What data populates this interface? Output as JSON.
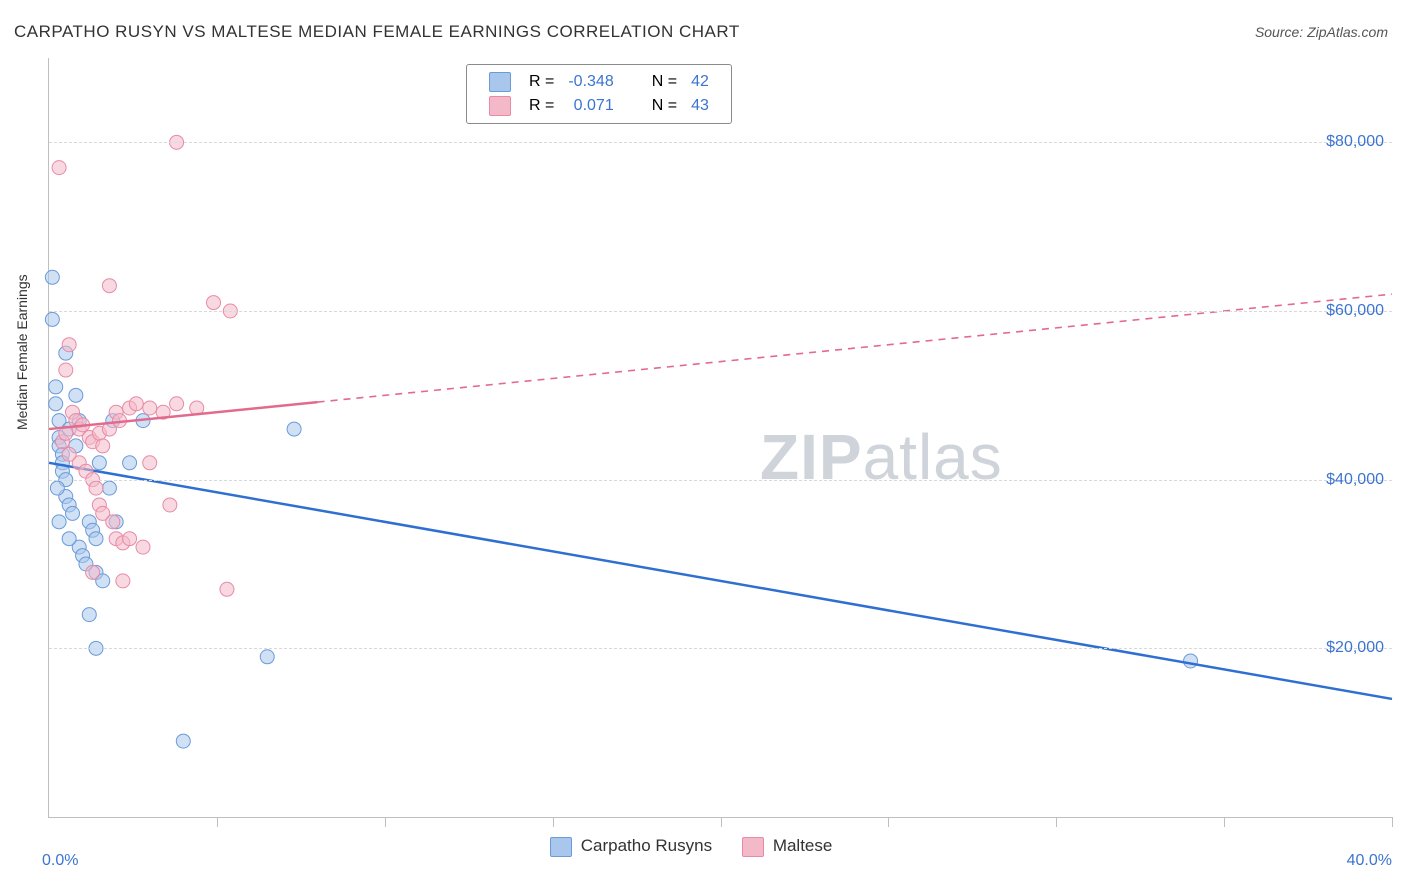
{
  "title": "CARPATHO RUSYN VS MALTESE MEDIAN FEMALE EARNINGS CORRELATION CHART",
  "source_label": "Source: ZipAtlas.com",
  "ylabel": "Median Female Earnings",
  "watermark_bold": "ZIP",
  "watermark_light": "atlas",
  "chart": {
    "type": "scatter-with-regression",
    "background_color": "#ffffff",
    "axis_color": "#bfbfbf",
    "grid_color": "#d9d9d9",
    "xlim": [
      0,
      40
    ],
    "ylim": [
      0,
      90000
    ],
    "x_ticks_minor": [
      5,
      10,
      15,
      20,
      25,
      30,
      35,
      40
    ],
    "x_tick_labels": [
      {
        "v": 0,
        "label": "0.0%"
      },
      {
        "v": 40,
        "label": "40.0%"
      }
    ],
    "y_tick_labels": [
      {
        "v": 20000,
        "label": "$20,000"
      },
      {
        "v": 40000,
        "label": "$40,000"
      },
      {
        "v": 60000,
        "label": "$60,000"
      },
      {
        "v": 80000,
        "label": "$80,000"
      }
    ],
    "y_grid": [
      20000,
      40000,
      60000,
      80000
    ],
    "marker_radius": 7,
    "marker_opacity": 0.55,
    "series": [
      {
        "name": "Carpatho Rusyns",
        "fill": "#a9c7ec",
        "stroke": "#6a9bd8",
        "line_color": "#2e6fd1",
        "R": "-0.348",
        "N": "42",
        "trend": {
          "x1": 0,
          "y1": 42000,
          "x2": 40,
          "y2": 14000,
          "solid_until_x": 40
        },
        "points": [
          [
            0.1,
            64000
          ],
          [
            0.1,
            59000
          ],
          [
            0.2,
            51000
          ],
          [
            0.2,
            49000
          ],
          [
            0.3,
            47000
          ],
          [
            0.3,
            45000
          ],
          [
            0.3,
            44000
          ],
          [
            0.4,
            43000
          ],
          [
            0.4,
            42000
          ],
          [
            0.4,
            41000
          ],
          [
            0.5,
            40000
          ],
          [
            0.5,
            38000
          ],
          [
            0.6,
            37000
          ],
          [
            0.7,
            36000
          ],
          [
            0.5,
            55000
          ],
          [
            0.6,
            46000
          ],
          [
            0.8,
            44000
          ],
          [
            0.9,
            32000
          ],
          [
            1.0,
            31000
          ],
          [
            1.1,
            30000
          ],
          [
            1.2,
            35000
          ],
          [
            1.3,
            34000
          ],
          [
            1.4,
            33000
          ],
          [
            0.9,
            47000
          ],
          [
            1.4,
            29000
          ],
          [
            1.6,
            28000
          ],
          [
            1.5,
            42000
          ],
          [
            1.8,
            39000
          ],
          [
            1.9,
            47000
          ],
          [
            2.0,
            35000
          ],
          [
            2.4,
            42000
          ],
          [
            2.8,
            47000
          ],
          [
            1.2,
            24000
          ],
          [
            1.4,
            20000
          ],
          [
            4.0,
            9000
          ],
          [
            7.3,
            46000
          ],
          [
            6.5,
            19000
          ],
          [
            34.0,
            18500
          ],
          [
            0.8,
            50000
          ],
          [
            0.3,
            35000
          ],
          [
            0.25,
            39000
          ],
          [
            0.6,
            33000
          ]
        ]
      },
      {
        "name": "Maltese",
        "fill": "#f4b9c9",
        "stroke": "#e88aa6",
        "line_color": "#e26a8d",
        "R": "0.071",
        "N": "43",
        "trend": {
          "x1": 0,
          "y1": 46000,
          "x2": 40,
          "y2": 62000,
          "solid_until_x": 8
        },
        "points": [
          [
            0.3,
            77000
          ],
          [
            3.8,
            80000
          ],
          [
            1.8,
            63000
          ],
          [
            0.6,
            56000
          ],
          [
            0.5,
            53000
          ],
          [
            4.9,
            61000
          ],
          [
            5.4,
            60000
          ],
          [
            0.7,
            48000
          ],
          [
            0.8,
            47000
          ],
          [
            0.9,
            46000
          ],
          [
            1.0,
            46500
          ],
          [
            1.2,
            45000
          ],
          [
            1.3,
            44500
          ],
          [
            1.5,
            45500
          ],
          [
            1.6,
            44000
          ],
          [
            1.8,
            46000
          ],
          [
            2.0,
            48000
          ],
          [
            2.1,
            47000
          ],
          [
            2.4,
            48500
          ],
          [
            2.6,
            49000
          ],
          [
            3.0,
            48500
          ],
          [
            3.4,
            48000
          ],
          [
            3.8,
            49000
          ],
          [
            4.4,
            48500
          ],
          [
            0.9,
            42000
          ],
          [
            1.1,
            41000
          ],
          [
            1.3,
            40000
          ],
          [
            1.4,
            39000
          ],
          [
            1.5,
            37000
          ],
          [
            1.6,
            36000
          ],
          [
            1.9,
            35000
          ],
          [
            2.0,
            33000
          ],
          [
            2.2,
            32500
          ],
          [
            2.4,
            33000
          ],
          [
            2.8,
            32000
          ],
          [
            3.0,
            42000
          ],
          [
            3.6,
            37000
          ],
          [
            1.3,
            29000
          ],
          [
            2.2,
            28000
          ],
          [
            5.3,
            27000
          ],
          [
            0.6,
            43000
          ],
          [
            0.4,
            44500
          ],
          [
            0.5,
            45500
          ]
        ]
      }
    ]
  },
  "legend_top": {
    "R_label": "R =",
    "N_label": "N =",
    "value_color": "#3b74d1"
  },
  "legend_bottom": {
    "items": [
      "Carpatho Rusyns",
      "Maltese"
    ]
  }
}
